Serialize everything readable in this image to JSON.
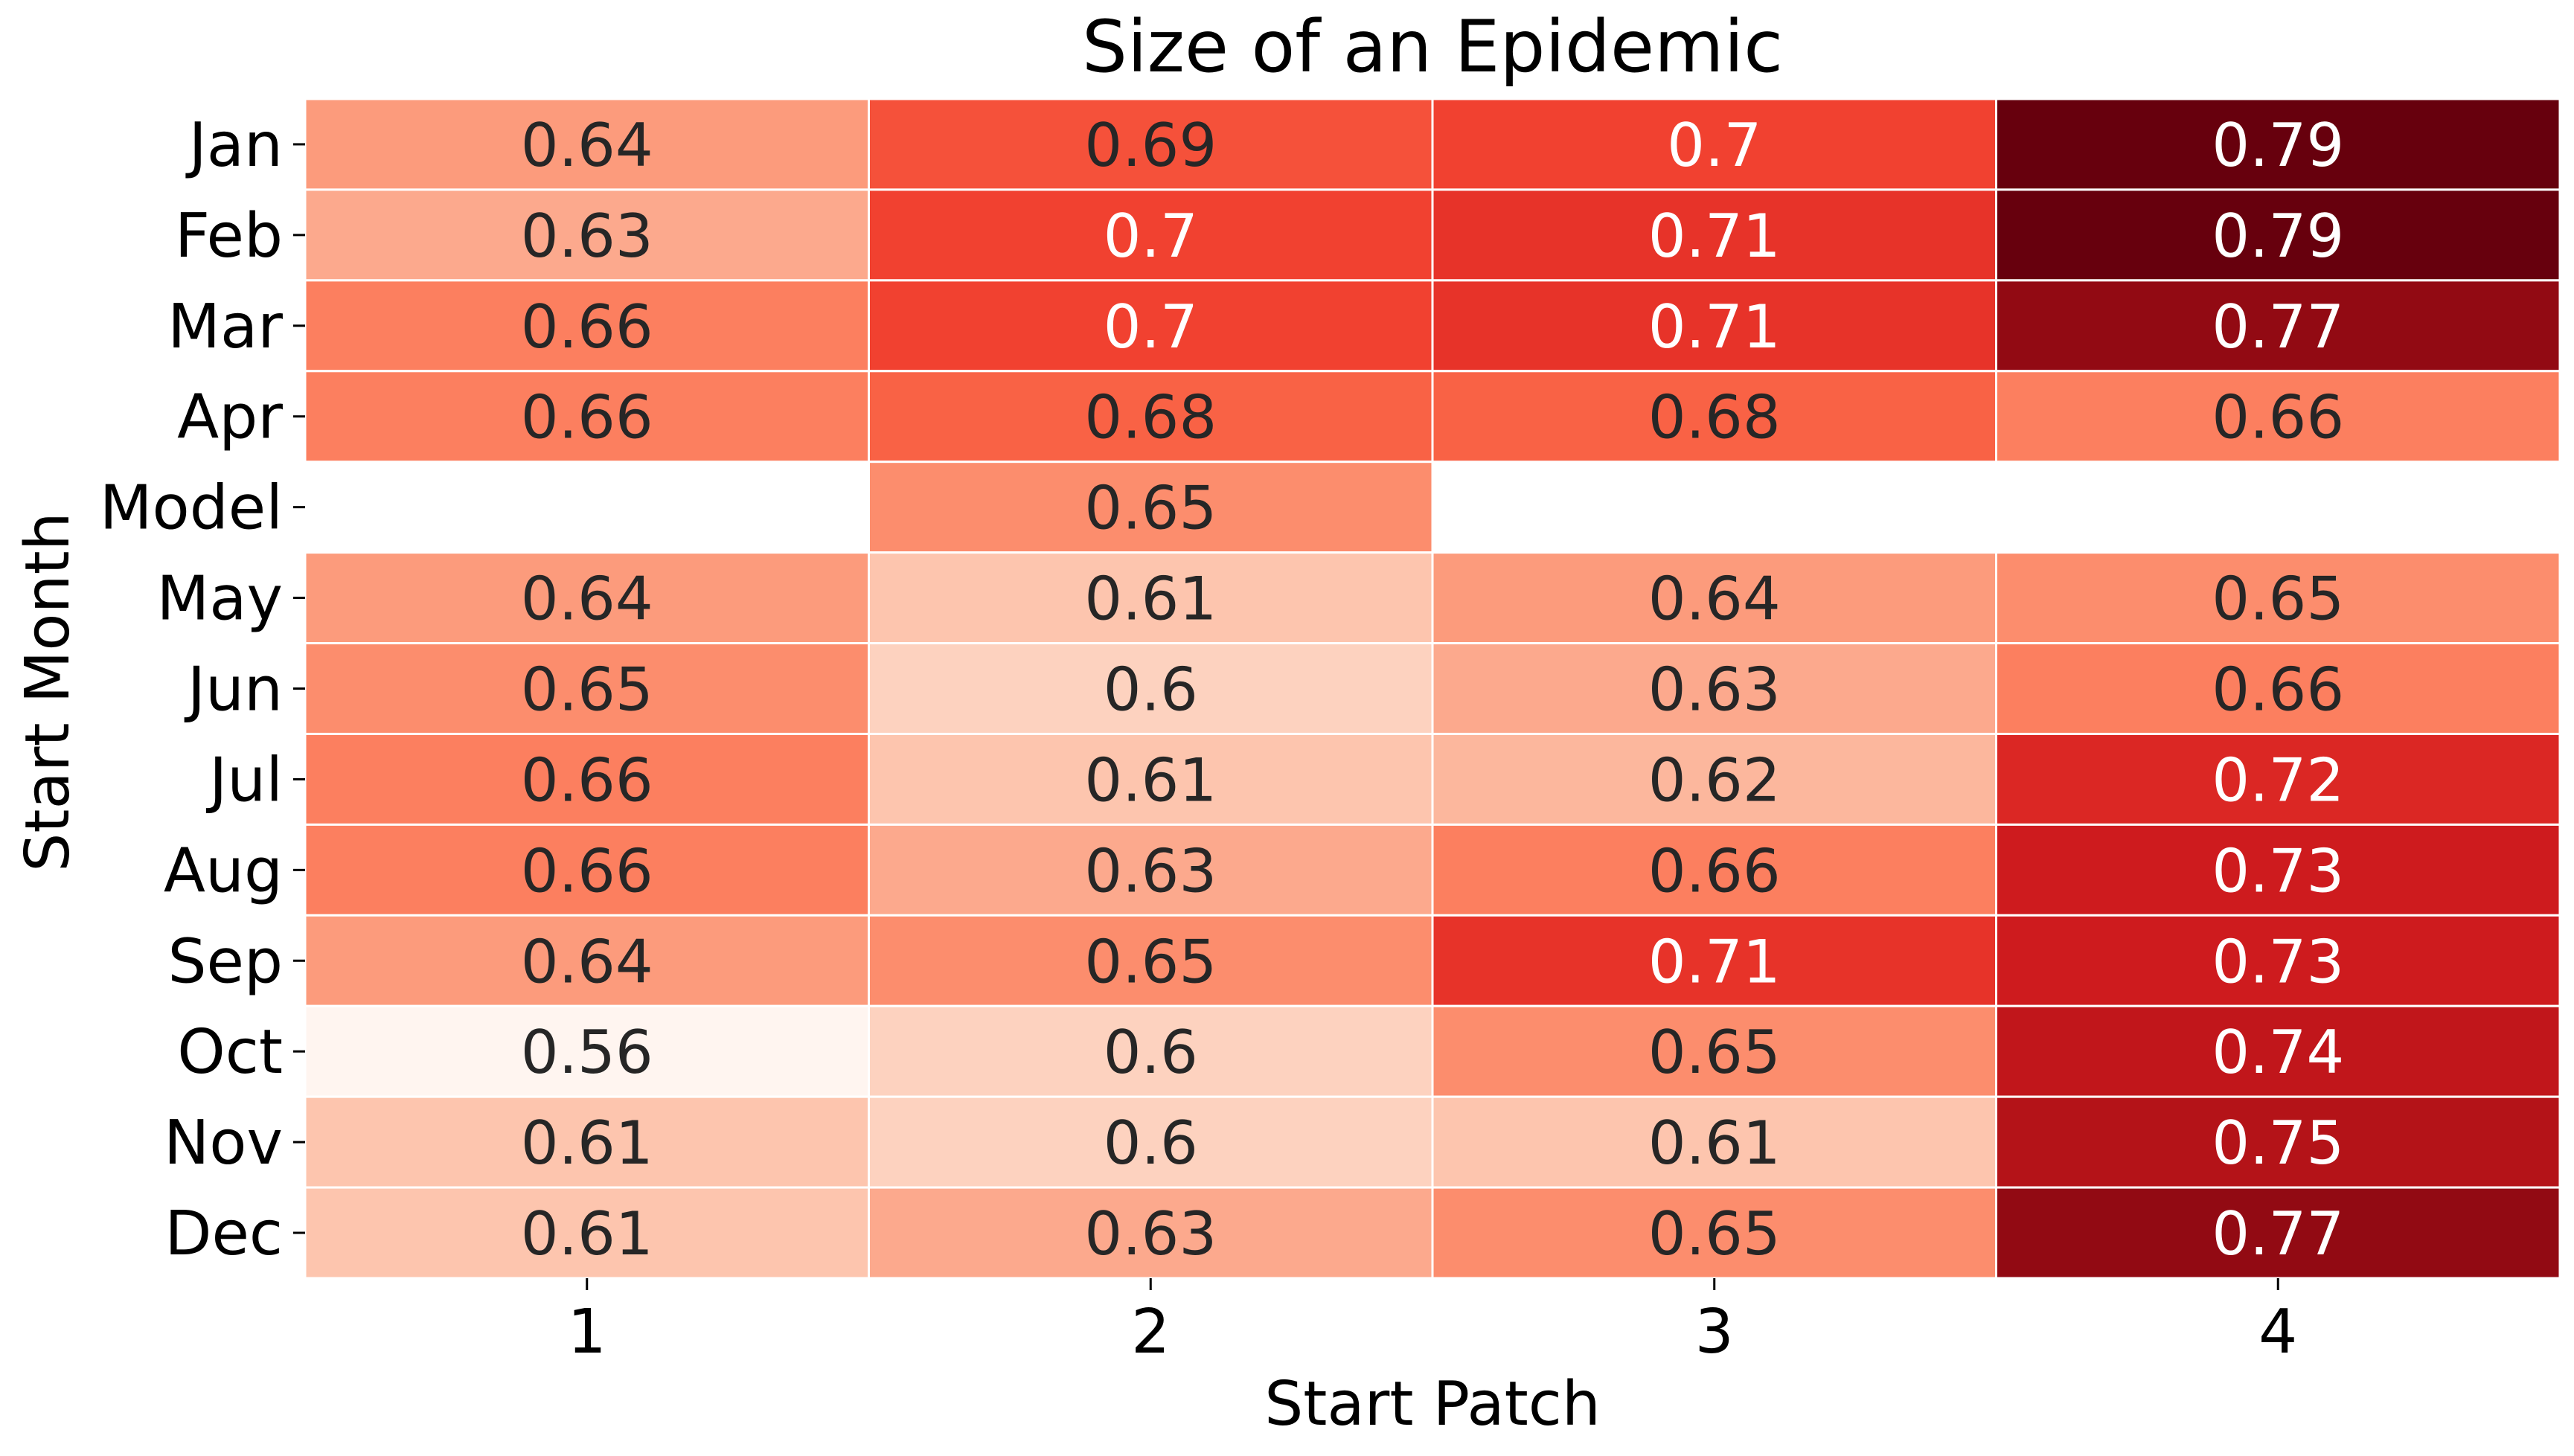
{
  "chart_data": {
    "type": "heatmap",
    "title": "Size of an Epidemic",
    "xlabel": "Start Patch",
    "ylabel": "Start Month",
    "x_categories": [
      "1",
      "2",
      "3",
      "4"
    ],
    "y_categories": [
      "Jan",
      "Feb",
      "Mar",
      "Apr",
      "Model",
      "May",
      "Jun",
      "Jul",
      "Aug",
      "Sep",
      "Oct",
      "Nov",
      "Dec"
    ],
    "values": [
      [
        0.64,
        0.69,
        0.7,
        0.79
      ],
      [
        0.63,
        0.7,
        0.71,
        0.79
      ],
      [
        0.66,
        0.7,
        0.71,
        0.77
      ],
      [
        0.66,
        0.68,
        0.68,
        0.66
      ],
      [
        null,
        0.65,
        null,
        null
      ],
      [
        0.64,
        0.61,
        0.64,
        0.65
      ],
      [
        0.65,
        0.6,
        0.63,
        0.66
      ],
      [
        0.66,
        0.61,
        0.62,
        0.72
      ],
      [
        0.66,
        0.63,
        0.66,
        0.73
      ],
      [
        0.64,
        0.65,
        0.71,
        0.73
      ],
      [
        0.56,
        0.6,
        0.65,
        0.74
      ],
      [
        0.61,
        0.6,
        0.61,
        0.75
      ],
      [
        0.61,
        0.63,
        0.65,
        0.77
      ]
    ],
    "colormap": "Reds",
    "vmin": 0.56,
    "vmax": 0.79,
    "annotations": true,
    "grid": false,
    "legend": "none"
  }
}
